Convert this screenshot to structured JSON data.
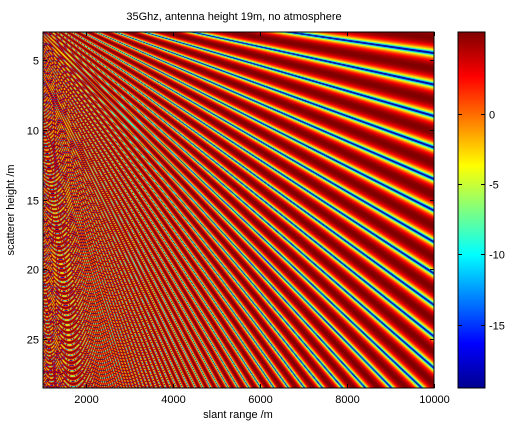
{
  "chart_data": {
    "type": "heatmap",
    "title": "35Ghz, antenna height 19m, no atmosphere",
    "xlabel": "slant range /m",
    "ylabel": "scatterer height /m",
    "xlim": [
      1000,
      10000
    ],
    "ylim": [
      3,
      28.5
    ],
    "y_reversed": true,
    "x_ticks": [
      2000,
      4000,
      6000,
      8000,
      10000
    ],
    "x_tick_labels": [
      "2000",
      "4000",
      "6000",
      "8000",
      "10000"
    ],
    "y_ticks": [
      5,
      10,
      15,
      20,
      25
    ],
    "y_tick_labels": [
      "5",
      "10",
      "15",
      "20",
      "25"
    ],
    "colorbar": {
      "colormap": "jet",
      "range": [
        -19.5,
        5.8
      ],
      "ticks": [
        0,
        -5,
        -10,
        -15
      ],
      "tick_labels": [
        "0",
        "-5",
        "-10",
        "-15"
      ]
    },
    "frequency_ghz": 35,
    "antenna_height_m": 19,
    "value_range": [
      -19.5,
      5.8
    ]
  }
}
